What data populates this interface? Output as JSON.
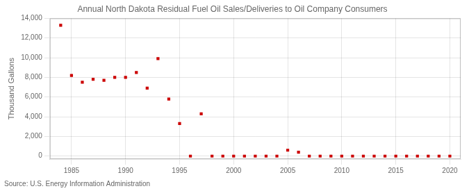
{
  "chart_data": {
    "type": "scatter",
    "title": "Annual North Dakota Residual Fuel Oil Sales/Deliveries to Oil Company Consumers",
    "ylabel": "Thousand Gallons",
    "annotations": [
      "Source: U.S. Energy Information Administration"
    ],
    "x": [
      1984,
      1985,
      1986,
      1987,
      1988,
      1989,
      1990,
      1991,
      1992,
      1993,
      1994,
      1995,
      1996,
      1997,
      1998,
      1999,
      2000,
      2001,
      2002,
      2003,
      2004,
      2005,
      2006,
      2007,
      2008,
      2009,
      2010,
      2011,
      2012,
      2013,
      2014,
      2015,
      2016,
      2017,
      2018,
      2019,
      2020
    ],
    "values": [
      13300,
      8200,
      7500,
      7800,
      7700,
      8000,
      8000,
      8500,
      6900,
      9900,
      5800,
      3300,
      0,
      4300,
      0,
      0,
      0,
      0,
      0,
      0,
      0,
      600,
      400,
      0,
      0,
      0,
      0,
      0,
      0,
      0,
      0,
      0,
      0,
      0,
      0,
      0,
      0
    ],
    "color": "#cc0000",
    "marker": "square",
    "xlim": [
      1983,
      2021
    ],
    "ylim": [
      -300,
      14000
    ],
    "xticks": [
      1985,
      1990,
      1995,
      2000,
      2005,
      2010,
      2015,
      2020
    ],
    "yticks": [
      0,
      {
        "value": 2000,
        "label": "2,000"
      },
      {
        "value": 4000,
        "label": "4,000"
      },
      {
        "value": 6000,
        "label": "6,000"
      },
      {
        "value": 8000,
        "label": "8,000"
      },
      {
        "value": 10000,
        "label": "10,000"
      },
      {
        "value": 12000,
        "label": "12,000"
      },
      {
        "value": 14000,
        "label": "14,000"
      }
    ],
    "grid": true
  }
}
